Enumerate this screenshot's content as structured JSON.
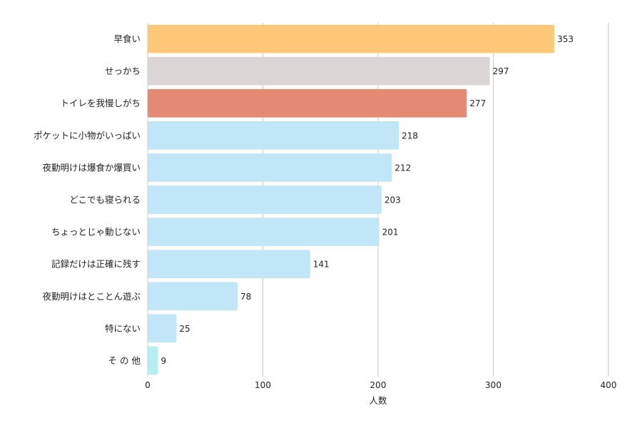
{
  "chart_data": {
    "type": "bar",
    "orientation": "horizontal",
    "title": "",
    "xlabel": "人数",
    "ylabel": "",
    "xlim": [
      0,
      400
    ],
    "xticks": [
      0,
      100,
      200,
      300,
      400
    ],
    "grid": true,
    "legend": "none",
    "categories": [
      "早食い",
      "せっかち",
      "トイレを我慢しがち",
      "ポケットに小物がいっぱい",
      "夜勤明けは爆食か爆買い",
      "どこでも寝られる",
      "ちょっとじゃ動じない",
      "記録だけは正確に残す",
      "夜勤明けはとことん遊ぶ",
      "特にない",
      "そ の 他"
    ],
    "values": [
      353,
      297,
      277,
      218,
      212,
      203,
      201,
      141,
      78,
      25,
      9
    ],
    "colors": [
      "#ffc878",
      "#dbd5d5",
      "#e58a75",
      "#c1e6f8",
      "#c1e6f8",
      "#c1e6f8",
      "#c1e6f8",
      "#c1e6f8",
      "#c1e6f8",
      "#c1e6f8",
      "#b5eef0"
    ]
  }
}
